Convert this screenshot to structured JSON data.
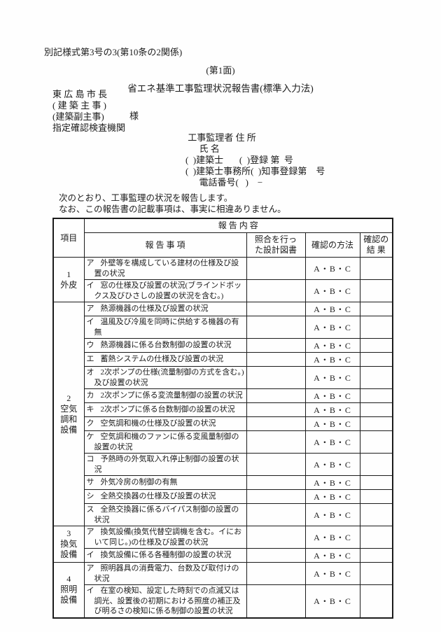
{
  "page": {
    "form_number": "別記様式第3号の3(第10条の2関係)",
    "face_label": "(第1面)",
    "title": "省エネ基準工事監理状況報告書(標準入力法)",
    "addressee": {
      "lines": [
        "東 広 島 市 長",
        "( 建 築 主 事 )",
        "(建築副主事)",
        "指定確認検査機関"
      ],
      "honorific": "様"
    },
    "supervisor": {
      "lines": [
        " 工事監理者 住 所",
        "      氏 名",
        "(  )建築士       (  )登録 第  号",
        "(  )建築士事務所(  )知事登録第    号",
        "      電話番号(   )    −"
      ]
    },
    "declaration": {
      "line1": "次のとおり、工事監理の状況を報告します。",
      "line2": "なお、この報告書の記載事項は、事実に相違ありません。"
    }
  },
  "table": {
    "header": {
      "item": "項目",
      "report_content": "報  告  内  容",
      "report_item": "報  告  事  項",
      "design_docs": "照合を行っ\nた設計図書",
      "method": "確認の方法",
      "result": "確認の\n結 果"
    },
    "sections": [
      {
        "label": "1\n外皮",
        "rows": [
          {
            "kana": "ア",
            "text": "外壁等を構成している建材の仕様及び設置の状況",
            "design_doc": "",
            "method": "A・B・C",
            "result": ""
          },
          {
            "kana": "イ",
            "text": "窓の仕様及び設置の状況(ブラインドボックス及びひさしの設置の状況を含む。)",
            "design_doc": "",
            "method": "A・B・C",
            "result": ""
          }
        ]
      },
      {
        "label": "2\n空気\n調和\n設備",
        "rows": [
          {
            "kana": "ア",
            "text": "熱源機器の仕様及び設置の状況",
            "design_doc": "",
            "method": "A・B・C",
            "result": ""
          },
          {
            "kana": "イ",
            "text": "温風及び冷風を同時に供給する機器の有無",
            "design_doc": "",
            "method": "A・B・C",
            "result": ""
          },
          {
            "kana": "ウ",
            "text": "熱源機器に係る台数制御の設置の状況",
            "design_doc": "",
            "method": "A・B・C",
            "result": ""
          },
          {
            "kana": "エ",
            "text": "蓄熱システムの仕様及び設置の状況",
            "design_doc": "",
            "method": "A・B・C",
            "result": ""
          },
          {
            "kana": "オ",
            "text": "2次ポンプの仕様(流量制御の方式を含む。)及び設置の状況",
            "design_doc": "",
            "method": "A・B・C",
            "result": ""
          },
          {
            "kana": "カ",
            "text": "2次ポンプに係る変流量制御の設置の状況",
            "design_doc": "",
            "method": "A・B・C",
            "result": ""
          },
          {
            "kana": "キ",
            "text": "2次ポンプに係る台数制御の設置の状況",
            "design_doc": "",
            "method": "A・B・C",
            "result": ""
          },
          {
            "kana": "ク",
            "text": "空気調和機の仕様及び設置の状況",
            "design_doc": "",
            "method": "A・B・C",
            "result": ""
          },
          {
            "kana": "ケ",
            "text": "空気調和機のファンに係る変風量制御の設置の状況",
            "design_doc": "",
            "method": "A・B・C",
            "result": ""
          },
          {
            "kana": "コ",
            "text": "予熱時の外気取入れ停止制御の設置の状況",
            "design_doc": "",
            "method": "A・B・C",
            "result": ""
          },
          {
            "kana": "サ",
            "text": "外気冷房の制御の有無",
            "design_doc": "",
            "method": "A・B・C",
            "result": ""
          },
          {
            "kana": "シ",
            "text": "全熱交換器の仕様及び設置の状況",
            "design_doc": "",
            "method": "A・B・C",
            "result": ""
          },
          {
            "kana": "ス",
            "text": "全熱交換器に係るバイパス制御の設置の状況",
            "design_doc": "",
            "method": "A・B・C",
            "result": ""
          }
        ]
      },
      {
        "label": "3\n換気\n設備",
        "rows": [
          {
            "kana": "ア",
            "text": "換気設備(換気代替空調機を含む。イにおいて同じ。)の仕様及び設置の状況",
            "design_doc": "",
            "method": "A・B・C",
            "result": ""
          },
          {
            "kana": "イ",
            "text": "換気設備に係る各種制御の設置の状況",
            "design_doc": "",
            "method": "A・B・C",
            "result": ""
          }
        ]
      },
      {
        "label": "4\n照明\n設備",
        "rows": [
          {
            "kana": "ア",
            "text": "照明器具の消費電力、台数及び取付けの状況",
            "design_doc": "",
            "method": "A・B・C",
            "result": ""
          },
          {
            "kana": "イ",
            "text": "在室の検知、設定した時刻での点滅又は調光、設置後の初期における照度の補正及び明るさの検知に係る制御の設置の状況",
            "design_doc": "",
            "method": "A・B・C",
            "result": ""
          }
        ]
      }
    ]
  }
}
